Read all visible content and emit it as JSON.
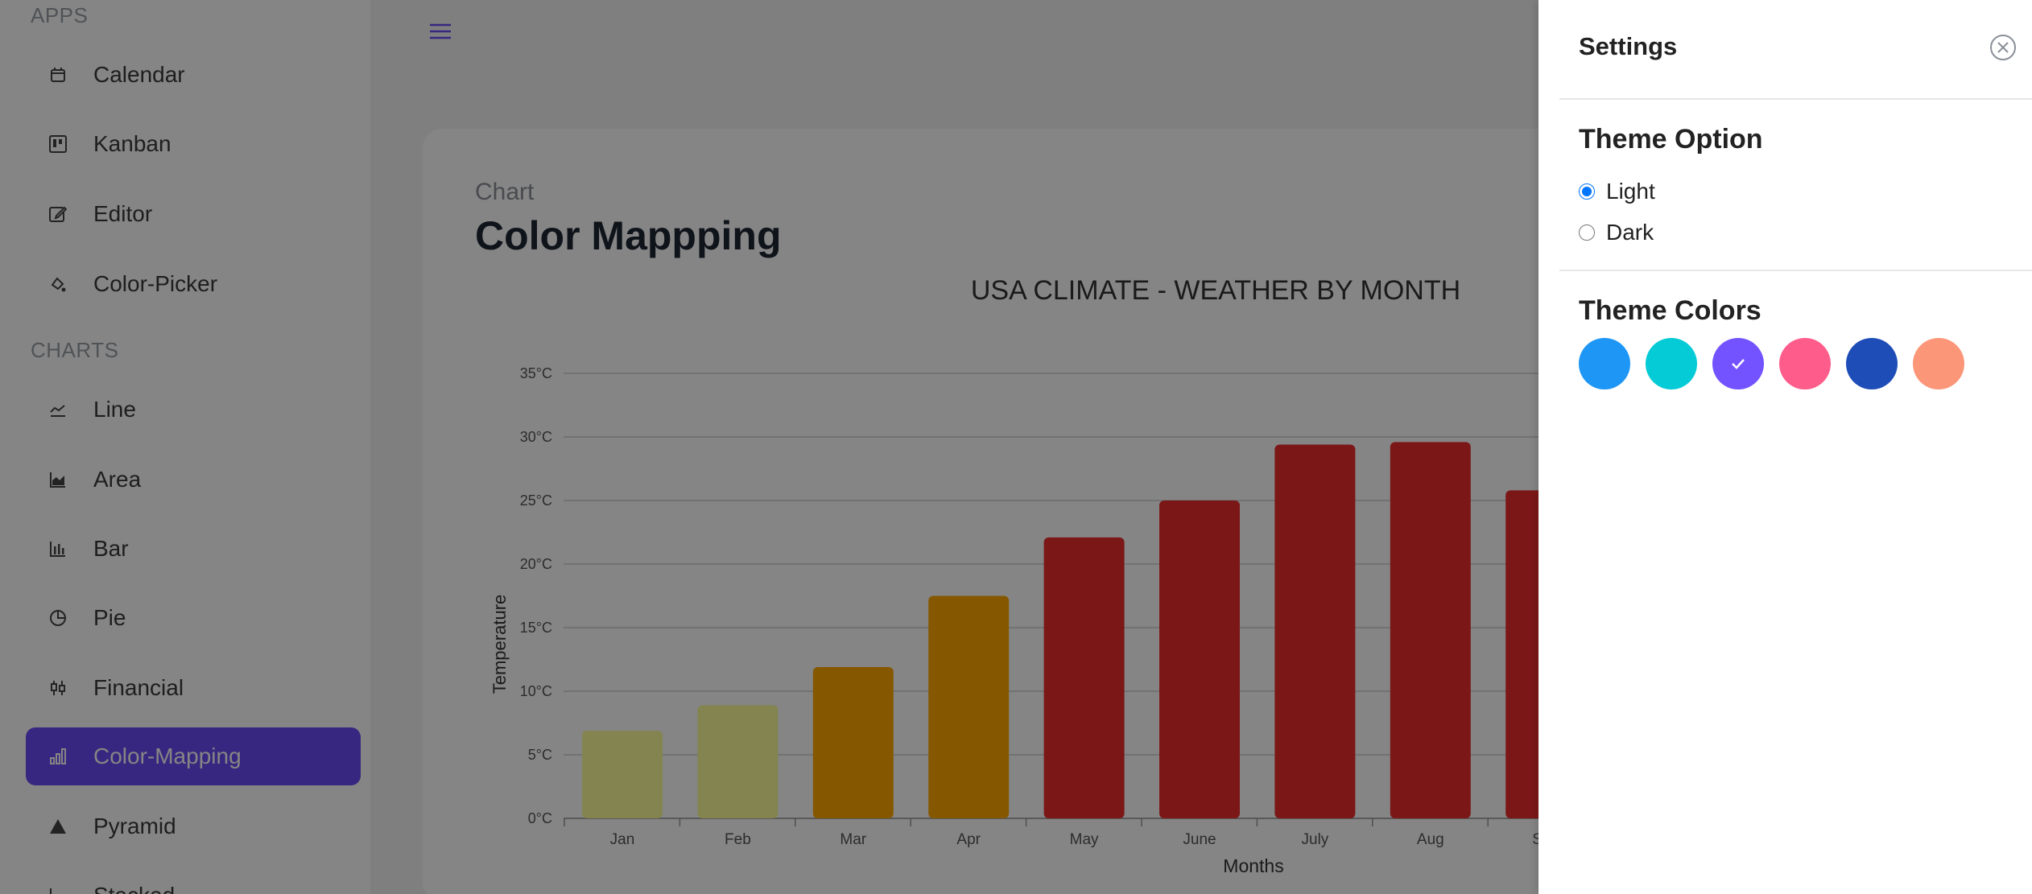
{
  "sidebar": {
    "apps_title": "APPS",
    "apps": [
      {
        "label": "Calendar",
        "icon": "calendar-icon"
      },
      {
        "label": "Kanban",
        "icon": "kanban-icon"
      },
      {
        "label": "Editor",
        "icon": "editor-icon"
      },
      {
        "label": "Color-Picker",
        "icon": "color-picker-icon"
      }
    ],
    "charts_title": "CHARTS",
    "charts": [
      {
        "label": "Line",
        "icon": "line-chart-icon"
      },
      {
        "label": "Area",
        "icon": "area-chart-icon"
      },
      {
        "label": "Bar",
        "icon": "bar-chart-icon"
      },
      {
        "label": "Pie",
        "icon": "pie-chart-icon"
      },
      {
        "label": "Financial",
        "icon": "financial-chart-icon"
      },
      {
        "label": "Color-Mapping",
        "icon": "color-mapping-icon",
        "active": true
      },
      {
        "label": "Pyramid",
        "icon": "pyramid-icon"
      },
      {
        "label": "Stacked",
        "icon": "stacked-chart-icon"
      }
    ]
  },
  "main": {
    "subtitle": "Chart",
    "title": "Color Mappping"
  },
  "chart_data": {
    "type": "bar",
    "title": "USA CLIMATE - WEATHER BY MONTH",
    "xlabel": "Months",
    "ylabel": "Temperature",
    "ylim": [
      0,
      35
    ],
    "yticks": [
      "0°C",
      "5°C",
      "10°C",
      "15°C",
      "20°C",
      "25°C",
      "30°C",
      "35°C"
    ],
    "categories": [
      "Jan",
      "Feb",
      "Mar",
      "Apr",
      "May",
      "June",
      "July",
      "Aug",
      "Sep"
    ],
    "values": [
      6.9,
      8.9,
      11.9,
      17.5,
      22.1,
      25.0,
      29.4,
      29.6,
      25.8
    ],
    "bar_colors": [
      "#fdfe9a",
      "#fdfe9a",
      "#ffaa00",
      "#ffaa00",
      "#ee2c2c",
      "#ee2c2c",
      "#ee2c2c",
      "#ee2c2c",
      "#ee2c2c"
    ],
    "grid": true
  },
  "settings": {
    "title": "Settings",
    "theme_option_title": "Theme Option",
    "options": [
      "Light",
      "Dark"
    ],
    "selected_option": "Light",
    "theme_colors_title": "Theme Colors",
    "colors": [
      "#1e96f5",
      "#05cbd6",
      "#7352ff",
      "#fe5c8b",
      "#1e4db7",
      "#fb9678"
    ],
    "selected_color": "#7352ff"
  }
}
